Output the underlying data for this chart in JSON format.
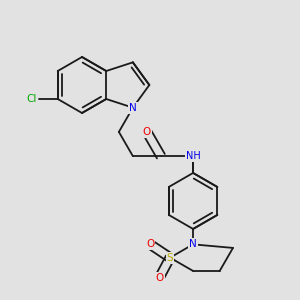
{
  "bg_color": "#e2e2e2",
  "bond_color": "#1a1a1a",
  "N_color": "#0000ee",
  "O_color": "#ee0000",
  "S_color": "#bbaa00",
  "Cl_color": "#00aa00",
  "lw": 1.3,
  "dbg": 0.012,
  "fs": 7.0
}
